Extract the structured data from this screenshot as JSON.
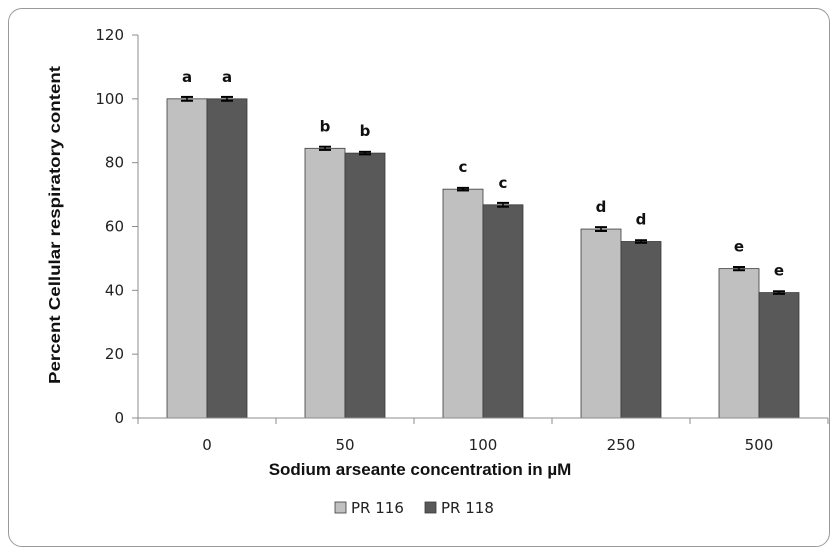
{
  "chart_data": {
    "type": "bar",
    "title": "",
    "xlabel": "Sodium arseante concentration in µM",
    "ylabel": "Percent Cellular respiratory content",
    "categories": [
      "0",
      "50",
      "100",
      "250",
      "500"
    ],
    "ylim": [
      0,
      120
    ],
    "yticks": [
      "0",
      "20",
      "40",
      "60",
      "80",
      "100",
      "120"
    ],
    "legend_position": "bottom-center",
    "grid": false,
    "series": [
      {
        "name": "PR 116",
        "color": "#c0c0c0",
        "values": [
          100,
          84.5,
          71.7,
          59.2,
          46.8
        ],
        "errors": [
          0.6,
          0.5,
          0.4,
          0.6,
          0.5
        ],
        "letters": [
          "a",
          "b",
          "c",
          "d",
          "e"
        ]
      },
      {
        "name": "PR 118",
        "color": "#595959",
        "values": [
          100,
          83,
          66.8,
          55.3,
          39.3
        ],
        "errors": [
          0.6,
          0.4,
          0.6,
          0.4,
          0.4
        ],
        "letters": [
          "a",
          "b",
          "c",
          "d",
          "e"
        ]
      }
    ]
  }
}
